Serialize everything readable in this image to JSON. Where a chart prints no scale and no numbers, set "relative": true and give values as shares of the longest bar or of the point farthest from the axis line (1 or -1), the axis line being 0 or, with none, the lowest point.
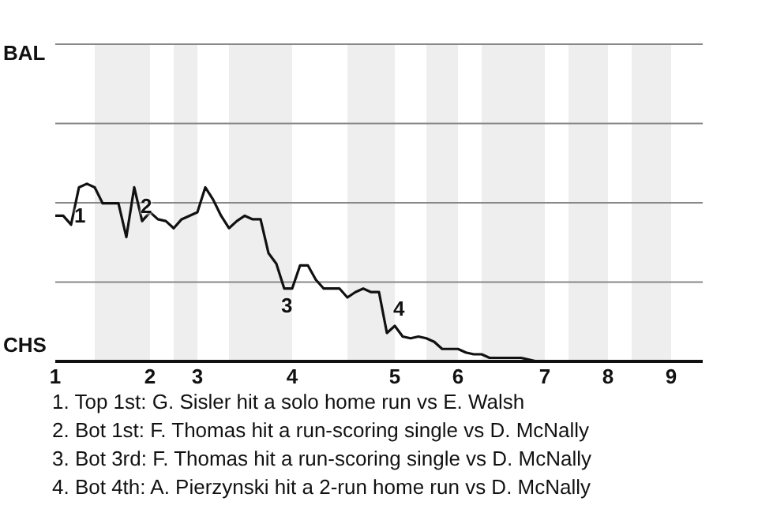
{
  "chart_data": {
    "type": "line",
    "relative": true,
    "categories": [
      "1",
      null,
      null,
      null,
      null,
      null,
      null,
      null,
      null,
      null,
      null,
      null,
      "2",
      null,
      null,
      null,
      null,
      null,
      "3",
      null,
      null,
      null,
      null,
      null,
      null,
      null,
      null,
      null,
      null,
      null,
      "4",
      null,
      null,
      null,
      null,
      null,
      null,
      null,
      null,
      null,
      null,
      null,
      null,
      "5",
      null,
      null,
      null,
      null,
      null,
      null,
      null,
      "6",
      null,
      null,
      null,
      null,
      null,
      null,
      null,
      null,
      null,
      null,
      "7",
      null,
      null,
      null,
      null,
      null,
      null,
      null,
      "8",
      null,
      null,
      null,
      null,
      null,
      null,
      null,
      "9",
      null,
      null,
      null,
      null
    ],
    "legend": false,
    "marker": "none",
    "line_style": "solid",
    "ref_lines": [
      {
        "axis": "y",
        "value": 0.446,
        "color": "#888888"
      },
      {
        "axis": "y",
        "value": 0.893,
        "color": "#888888"
      },
      {
        "axis": "y",
        "value": 1.339,
        "color": "#888888"
      },
      {
        "axis": "y",
        "value": 1.786,
        "color": "#888888"
      }
    ],
    "series": [
      {
        "color": "#111111",
        "values": [
          0.82,
          0.82,
          0.77,
          0.98,
          1,
          0.98,
          0.89,
          0.89,
          0.89,
          0.7,
          0.98,
          0.79,
          0.84,
          0.8,
          0.79,
          0.75,
          0.8,
          0.82,
          0.84,
          0.98,
          0.91,
          0.82,
          0.75,
          0.79,
          0.82,
          0.8,
          0.8,
          0.61,
          0.55,
          0.41,
          0.41,
          0.54,
          0.54,
          0.46,
          0.41,
          0.41,
          0.41,
          0.36,
          0.39,
          0.41,
          0.39,
          0.39,
          0.16,
          0.2,
          0.14,
          0.13,
          0.14,
          0.13,
          0.11,
          0.07,
          0.07,
          0.07,
          0.05,
          0.04,
          0.04,
          0.02,
          0.02,
          0.02,
          0.02,
          0.02,
          0.01,
          0,
          0,
          0,
          0,
          0,
          0,
          0,
          0,
          0,
          0,
          0,
          0,
          0,
          0,
          0,
          0,
          0,
          0,
          0,
          0,
          0,
          0
        ]
      }
    ],
    "annotations": [
      "BAL",
      "CHS",
      "1",
      "2",
      "3",
      "4",
      "1. Top 1st: G. Sisler hit a solo home run vs E. Walsh",
      "2. Bot 1st: F. Thomas hit a run-scoring single vs D. McNally",
      "3. Bot 3rd: F. Thomas hit a run-scoring single vs D. McNally",
      "4. Bot 4th: A. Pierzynski hit a 2-run home run vs D. McNally"
    ]
  }
}
